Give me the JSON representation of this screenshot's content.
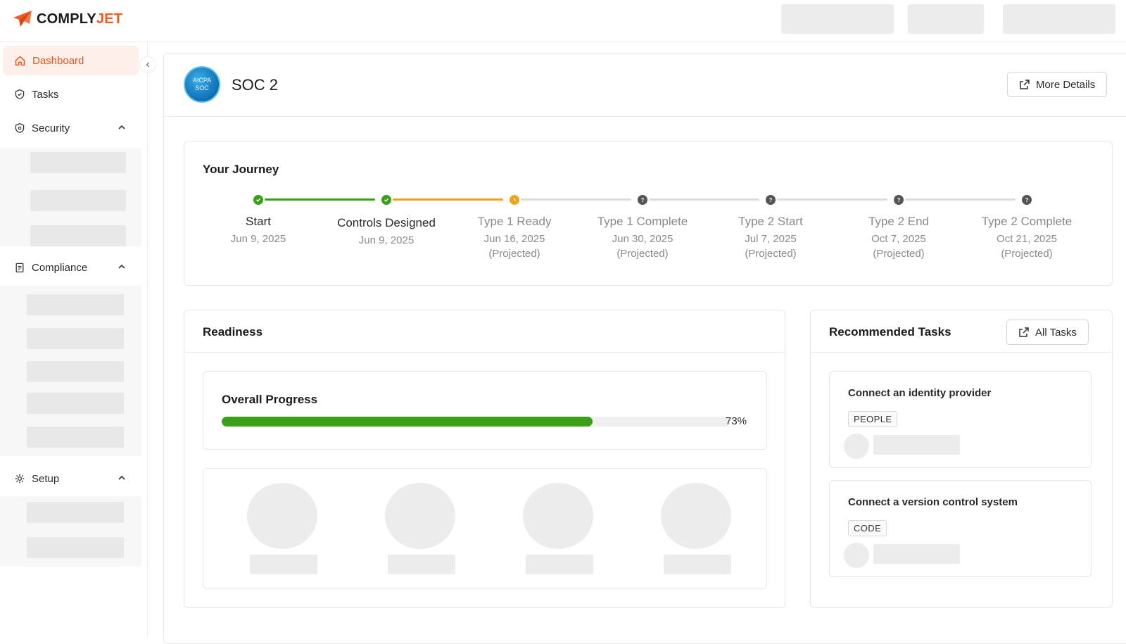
{
  "brand": {
    "name_part1": "COMPLY",
    "name_part2": "JET",
    "accent": "#f05a22"
  },
  "sidebar": {
    "items": [
      {
        "label": "Dashboard",
        "icon": "home-icon",
        "active": true
      },
      {
        "label": "Tasks",
        "icon": "shield-check-icon"
      },
      {
        "label": "Security",
        "icon": "shield-icon",
        "expanded": true
      },
      {
        "label": "Compliance",
        "icon": "clipboard-icon",
        "expanded": true
      },
      {
        "label": "Setup",
        "icon": "gear-icon",
        "expanded": true
      }
    ]
  },
  "framework": {
    "title": "SOC 2",
    "badge_line1": "AICPA",
    "badge_line2": "SOC",
    "more_details_label": "More Details"
  },
  "journey": {
    "title": "Your Journey",
    "steps": [
      {
        "name": "Start",
        "date": "Jun 9, 2025",
        "note": "",
        "status": "done"
      },
      {
        "name": "Controls Designed",
        "date": "Jun 9, 2025",
        "note": "",
        "status": "done"
      },
      {
        "name": "Type 1 Ready",
        "date": "Jun 16, 2025",
        "note": "(Projected)",
        "status": "current"
      },
      {
        "name": "Type 1 Complete",
        "date": "Jun 30, 2025",
        "note": "(Projected)",
        "status": "future"
      },
      {
        "name": "Type 2 Start",
        "date": "Jul 7, 2025",
        "note": "(Projected)",
        "status": "future"
      },
      {
        "name": "Type 2 End",
        "date": "Oct 7, 2025",
        "note": "(Projected)",
        "status": "future"
      },
      {
        "name": "Type 2 Complete",
        "date": "Oct 21, 2025",
        "note": "(Projected)",
        "status": "future"
      }
    ],
    "colors": {
      "done": "#3aa018",
      "current": "#f0a41c",
      "future": "#555555",
      "line_future": "#dcdcdc"
    }
  },
  "readiness": {
    "title": "Readiness",
    "overall_label": "Overall Progress",
    "progress_percent": 73,
    "progress_text": "73%"
  },
  "recommended": {
    "title": "Recommended Tasks",
    "all_tasks_label": "All Tasks",
    "tasks": [
      {
        "title": "Connect an identity provider",
        "tag": "PEOPLE"
      },
      {
        "title": "Connect a version control system",
        "tag": "CODE"
      }
    ]
  }
}
